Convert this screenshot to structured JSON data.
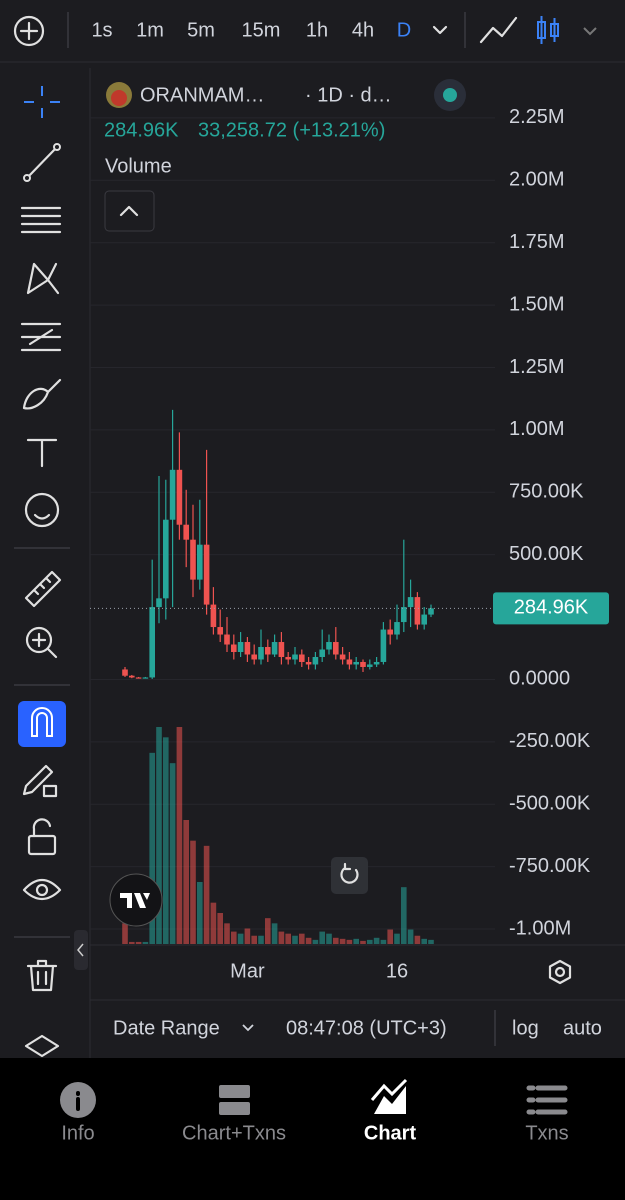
{
  "toolbar": {
    "intervals": [
      "1s",
      "1m",
      "5m",
      "15m",
      "1h",
      "4h",
      "D"
    ],
    "active_interval": "D"
  },
  "legend": {
    "symbol": "ORANMAM…",
    "suffix": "· 1D · d…",
    "price": "284.96K",
    "change": "33,258.72 (+13.21%)",
    "volume": "Volume"
  },
  "chart_data": {
    "type": "candlestick",
    "categories": [
      null,
      null,
      null,
      null,
      null,
      null,
      null,
      null,
      null,
      null,
      null,
      null,
      null,
      null,
      null,
      null,
      null,
      null,
      "Mar",
      null,
      null,
      null,
      null,
      null,
      null,
      null,
      null,
      null,
      null,
      null,
      null,
      null,
      null,
      null,
      null,
      null,
      null,
      null,
      null,
      null,
      "16",
      null,
      null,
      null,
      null,
      null
    ],
    "open": [
      40000,
      15000,
      8000,
      6000,
      8000,
      290000,
      325000,
      640000,
      840000,
      620000,
      560000,
      400000,
      540000,
      300000,
      210000,
      180000,
      140000,
      110000,
      150000,
      100000,
      80000,
      130000,
      100000,
      150000,
      90000,
      80000,
      100000,
      70000,
      60000,
      90000,
      120000,
      150000,
      100000,
      80000,
      60000,
      70000,
      50000,
      60000,
      70000,
      200000,
      180000,
      230000,
      290000,
      330000,
      220000,
      260000
    ],
    "high": [
      50000,
      18000,
      10000,
      10000,
      480000,
      815000,
      800000,
      1080000,
      990000,
      760000,
      700000,
      720000,
      920000,
      370000,
      280000,
      250000,
      180000,
      190000,
      170000,
      140000,
      200000,
      160000,
      180000,
      190000,
      110000,
      130000,
      120000,
      90000,
      110000,
      200000,
      180000,
      210000,
      130000,
      110000,
      90000,
      80000,
      80000,
      90000,
      230000,
      240000,
      300000,
      560000,
      400000,
      350000,
      290000,
      300000
    ],
    "low": [
      10000,
      5000,
      4000,
      4000,
      2000,
      225000,
      240000,
      290000,
      560000,
      450000,
      330000,
      360000,
      260000,
      180000,
      150000,
      110000,
      80000,
      90000,
      70000,
      60000,
      60000,
      70000,
      90000,
      60000,
      60000,
      60000,
      50000,
      40000,
      40000,
      70000,
      100000,
      80000,
      60000,
      40000,
      40000,
      30000,
      40000,
      50000,
      60000,
      140000,
      160000,
      190000,
      210000,
      200000,
      200000,
      250000
    ],
    "close": [
      15000,
      8000,
      6000,
      8000,
      290000,
      325000,
      640000,
      840000,
      620000,
      560000,
      400000,
      540000,
      300000,
      210000,
      180000,
      140000,
      110000,
      150000,
      100000,
      80000,
      130000,
      100000,
      150000,
      90000,
      80000,
      100000,
      70000,
      60000,
      90000,
      120000,
      150000,
      100000,
      80000,
      60000,
      70000,
      50000,
      60000,
      70000,
      200000,
      180000,
      230000,
      290000,
      330000,
      220000,
      260000,
      284960
    ],
    "volume": [
      20,
      2,
      2,
      2,
      185,
      210,
      200,
      175,
      210,
      120,
      100,
      60,
      95,
      40,
      30,
      20,
      12,
      10,
      15,
      8,
      8,
      25,
      20,
      12,
      10,
      8,
      10,
      6,
      4,
      12,
      10,
      6,
      5,
      4,
      5,
      3,
      4,
      6,
      4,
      14,
      10,
      55,
      14,
      8,
      5,
      4
    ],
    "up_color": "#26a69a",
    "down_color": "#ef5350",
    "ylim": [
      -1060000,
      2450000
    ],
    "yticks": [
      {
        "value": 2250000,
        "label": "2.25M"
      },
      {
        "value": 2000000,
        "label": "2.00M"
      },
      {
        "value": 1750000,
        "label": "1.75M"
      },
      {
        "value": 1500000,
        "label": "1.50M"
      },
      {
        "value": 1250000,
        "label": "1.25M"
      },
      {
        "value": 1000000,
        "label": "1.00M"
      },
      {
        "value": 750000,
        "label": "750.00K"
      },
      {
        "value": 500000,
        "label": "500.00K"
      },
      {
        "value": 0,
        "label": "0.0000"
      },
      {
        "value": -250000,
        "label": "-250.00K"
      },
      {
        "value": -500000,
        "label": "-500.00K"
      },
      {
        "value": -750000,
        "label": "-750.00K"
      },
      {
        "value": -1000000,
        "label": "-1.00M"
      }
    ],
    "grid": true,
    "last_price": 284960,
    "last_price_label": "284.96K"
  },
  "footer": {
    "date_range": "Date Range",
    "time": "08:47:08 (UTC+3)",
    "log": "log",
    "auto": "auto"
  },
  "nav": [
    {
      "label": "Info"
    },
    {
      "label": "Chart+Txns"
    },
    {
      "label": "Chart"
    },
    {
      "label": "Txns"
    }
  ]
}
